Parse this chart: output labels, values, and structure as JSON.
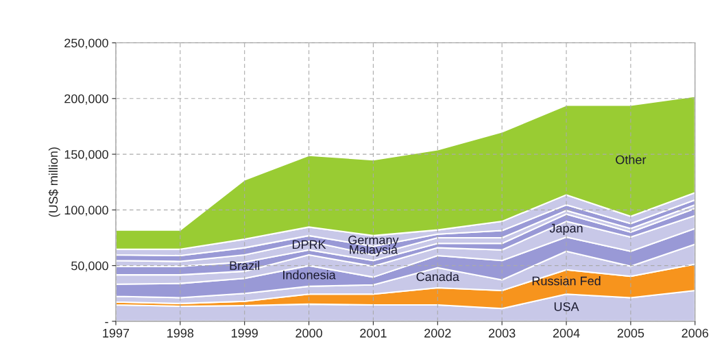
{
  "chart_data": {
    "type": "area",
    "stacked": true,
    "ylabel": "(US$ million)",
    "x": [
      1997,
      1998,
      1999,
      2000,
      2001,
      2002,
      2003,
      2004,
      2005,
      2006
    ],
    "xlim": [
      1997,
      2006
    ],
    "xticks": [
      1997,
      1998,
      1999,
      2000,
      2001,
      2002,
      2003,
      2004,
      2005,
      2006
    ],
    "ylim": [
      0,
      250000
    ],
    "yticks": [
      {
        "value": 0,
        "label": "-"
      },
      {
        "value": 50000,
        "label": "50,000"
      },
      {
        "value": 100000,
        "label": "100,000"
      },
      {
        "value": 150000,
        "label": "150,000"
      },
      {
        "value": 200000,
        "label": "200,000"
      },
      {
        "value": 250000,
        "label": "250,000"
      }
    ],
    "grid": true,
    "legend": false,
    "series": [
      {
        "name": "USA",
        "color": "#c8c8e8",
        "values": [
          14700,
          13500,
          14100,
          15400,
          14700,
          14700,
          11500,
          24400,
          21200,
          27600
        ]
      },
      {
        "name": "Russian Fed",
        "color": "#f7941d",
        "values": [
          2600,
          2500,
          3800,
          9000,
          9700,
          15400,
          16100,
          21800,
          19200,
          23700
        ]
      },
      {
        "name": "Canada",
        "color": "#c8c8e8",
        "values": [
          5100,
          5200,
          7100,
          7000,
          8300,
          18000,
          9600,
          16600,
          9000,
          17900
        ]
      },
      {
        "name": "Indonesia",
        "color": "#9999d6",
        "values": [
          10900,
          12800,
          13500,
          18600,
          7000,
          10900,
          17300,
          12800,
          13400,
          14100
        ]
      },
      {
        "name": "Japan",
        "color": "#c8c8e8",
        "values": [
          8400,
          7700,
          6400,
          9600,
          9700,
          7000,
          9600,
          14100,
          12800,
          11600
        ]
      },
      {
        "name": "Brazil",
        "color": "#9999d6",
        "values": [
          7700,
          7700,
          8300,
          4500,
          5100,
          3900,
          5800,
          6500,
          4500,
          6400
        ]
      },
      {
        "name": "DPRK",
        "color": "#c8c8e8",
        "values": [
          5100,
          4400,
          6400,
          7700,
          5100,
          5100,
          5100,
          3200,
          3200,
          3200
        ]
      },
      {
        "name": "Malaysia",
        "color": "#9999d6",
        "values": [
          5100,
          5200,
          6400,
          5100,
          7700,
          3200,
          6400,
          5100,
          4500,
          4500
        ]
      },
      {
        "name": "Germany",
        "color": "#c8c8e8",
        "values": [
          5100,
          5700,
          7700,
          7700,
          9600,
          3800,
          8300,
          9000,
          6400,
          6400
        ]
      },
      {
        "name": "Other",
        "color": "#99cc33",
        "values": [
          17300,
          17300,
          53300,
          64400,
          68100,
          72000,
          80300,
          80500,
          99800,
          86600
        ]
      }
    ]
  }
}
